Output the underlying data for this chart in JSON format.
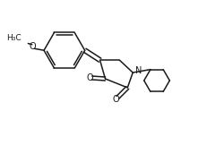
{
  "background_color": "#ffffff",
  "line_color": "#1a1a1a",
  "line_width": 1.1,
  "font_size": 6.5,
  "figsize": [
    2.31,
    1.72
  ],
  "dpi": 100,
  "xlim": [
    0,
    10
  ],
  "ylim": [
    0,
    8.6
  ]
}
